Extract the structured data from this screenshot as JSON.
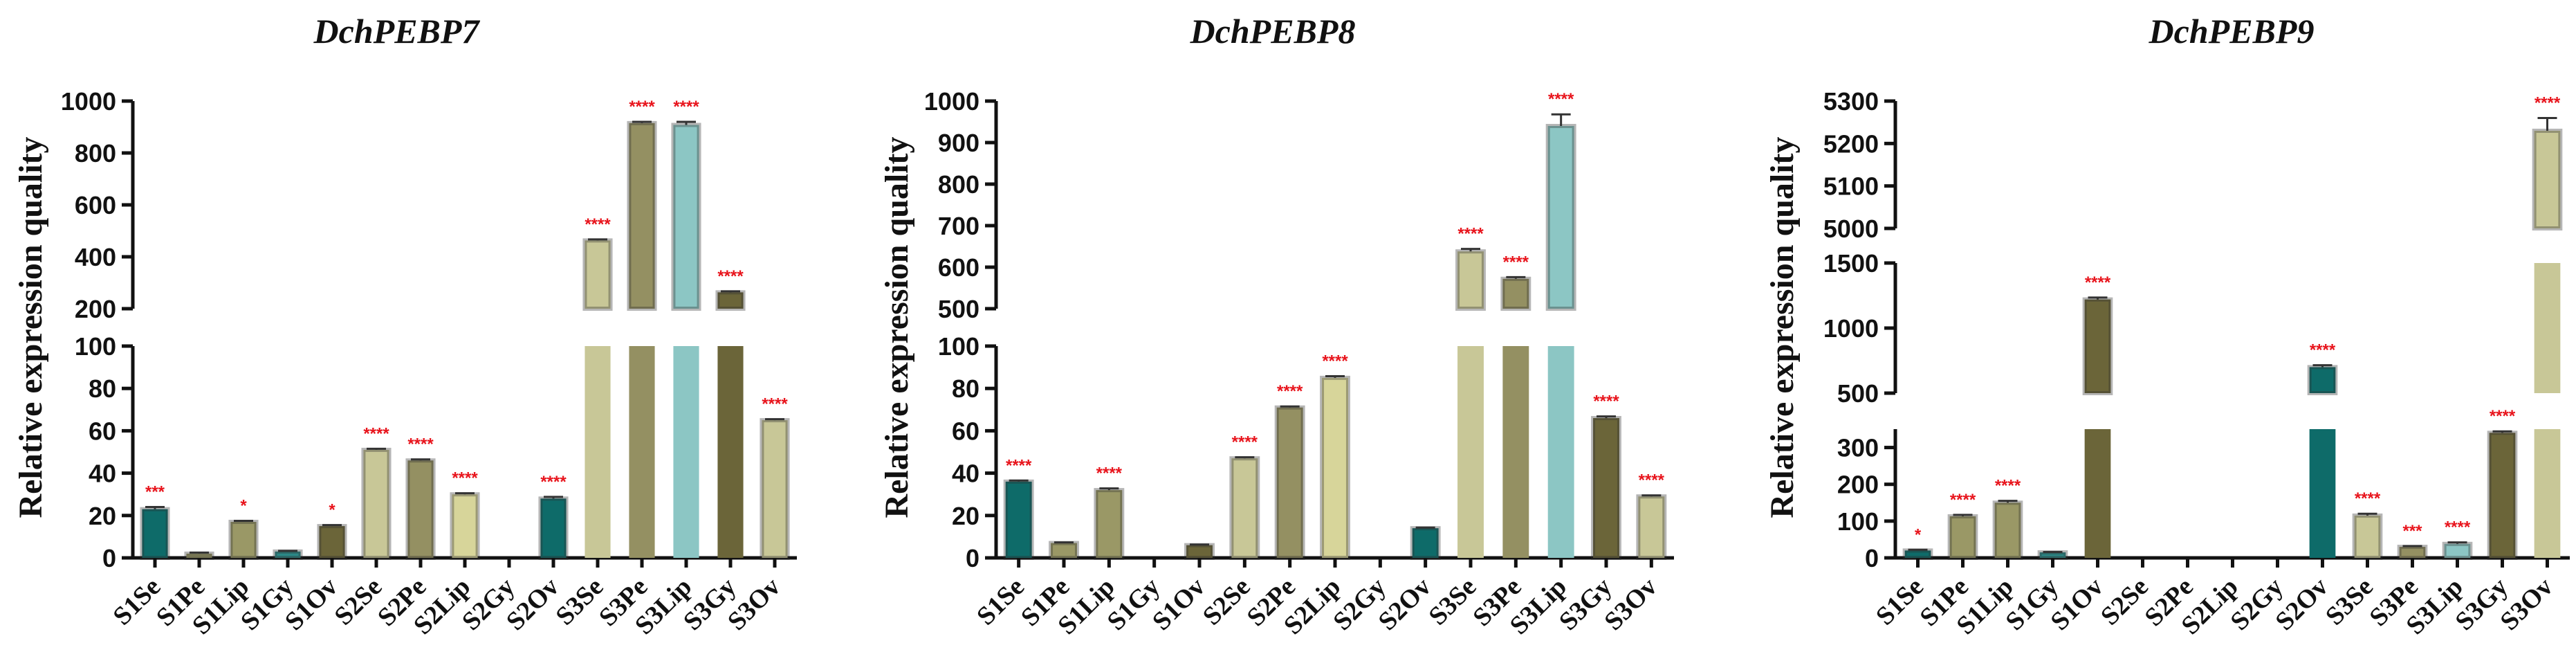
{
  "chart_data": [
    {
      "type": "bar",
      "title": "DchPEBP7",
      "ylabel": "Relative expression quality",
      "xlabel": "",
      "categories": [
        "S1Se",
        "S1Pe",
        "S1Lip",
        "S1Gy",
        "S1Ov",
        "S2Se",
        "S2Pe",
        "S2Lip",
        "S2Gy",
        "S2Ov",
        "S3Se",
        "S3Pe",
        "S3Lip",
        "S3Gy",
        "S3Ov"
      ],
      "values": [
        23,
        2,
        17,
        3,
        15,
        51,
        46,
        30,
        0,
        28,
        463,
        915,
        908,
        263,
        65
      ],
      "errors": [
        1,
        0.5,
        0.5,
        0.3,
        0.5,
        0.5,
        0.5,
        0.5,
        0,
        0.8,
        4,
        5,
        12,
        4,
        0.5
      ],
      "significance": [
        "***",
        "",
        "*",
        "",
        "*",
        "****",
        "****",
        "****",
        "",
        "****",
        "****",
        "****",
        "****",
        "****",
        "****"
      ],
      "colors": [
        "#0e6b69",
        "#9a9866",
        "#9a9866",
        "#2b8886",
        "#6b6539",
        "#c8c797",
        "#949062",
        "#d7d59a",
        "#555555",
        "#0e6b69",
        "#c8c797",
        "#949062",
        "#8cc6c4",
        "#6b6539",
        "#c8c797"
      ],
      "broken_axis": true,
      "segments": [
        {
          "range": [
            0,
            100
          ],
          "ticks": [
            "0",
            "20",
            "40",
            "60",
            "80",
            "100"
          ]
        },
        {
          "range": [
            200,
            1000
          ],
          "ticks": [
            "200",
            "400",
            "600",
            "800",
            "1000"
          ]
        }
      ]
    },
    {
      "type": "bar",
      "title": "DchPEBP8",
      "ylabel": "Relative expression quality",
      "xlabel": "",
      "categories": [
        "S1Se",
        "S1Pe",
        "S1Lip",
        "S1Gy",
        "S1Ov",
        "S2Se",
        "S2Pe",
        "S2Lip",
        "S2Gy",
        "S2Ov",
        "S3Se",
        "S3Pe",
        "S3Lip",
        "S3Gy",
        "S3Ov"
      ],
      "values": [
        36,
        7,
        32,
        0,
        6,
        47,
        71,
        85,
        0,
        14,
        638,
        572,
        940,
        66,
        29
      ],
      "errors": [
        0.5,
        0.3,
        0.8,
        0,
        0.3,
        0.5,
        0.5,
        0.8,
        0,
        0.3,
        6,
        4,
        28,
        0.8,
        0.5
      ],
      "significance": [
        "****",
        "",
        "****",
        "",
        "",
        "****",
        "****",
        "****",
        "",
        "",
        "****",
        "****",
        "****",
        "****",
        "****"
      ],
      "colors": [
        "#0e6b69",
        "#9a9866",
        "#9a9866",
        "#2b8886",
        "#6b6539",
        "#c8c797",
        "#949062",
        "#d7d59a",
        "#555555",
        "#0e6b69",
        "#c8c797",
        "#949062",
        "#8cc6c4",
        "#6b6539",
        "#c8c797"
      ],
      "broken_axis": true,
      "segments": [
        {
          "range": [
            0,
            100
          ],
          "ticks": [
            "0",
            "20",
            "40",
            "60",
            "80",
            "100"
          ]
        },
        {
          "range": [
            500,
            1000
          ],
          "ticks": [
            "500",
            "600",
            "700",
            "800",
            "900",
            "1000"
          ]
        }
      ]
    },
    {
      "type": "bar",
      "title": "DchPEBP9",
      "ylabel": "Relative expression quality",
      "xlabel": "",
      "categories": [
        "S1Se",
        "S1Pe",
        "S1Lip",
        "S1Gy",
        "S1Ov",
        "S2Se",
        "S2Pe",
        "S2Lip",
        "S2Gy",
        "S2Ov",
        "S3Se",
        "S3Pe",
        "S3Lip",
        "S3Gy",
        "S3Ov"
      ],
      "values": [
        20,
        113,
        150,
        15,
        1220,
        0,
        0,
        0,
        0,
        700,
        115,
        30,
        38,
        340,
        5230
      ],
      "errors": [
        2,
        4,
        5,
        1,
        15,
        0,
        0,
        0,
        0,
        15,
        5,
        2,
        4,
        4,
        30
      ],
      "significance": [
        "*",
        "****",
        "****",
        "",
        "****",
        "",
        "",
        "",
        "",
        "****",
        "****",
        "***",
        "****",
        "****",
        "****"
      ],
      "colors": [
        "#0e6b69",
        "#9a9866",
        "#9a9866",
        "#2b8886",
        "#6b6539",
        "#c8c797",
        "#949062",
        "#d7d59a",
        "#555555",
        "#0e6b69",
        "#c8c797",
        "#949062",
        "#8cc6c4",
        "#6b6539",
        "#c8c797"
      ],
      "broken_axis": true,
      "segments": [
        {
          "range": [
            0,
            350
          ],
          "ticks": [
            "0",
            "100",
            "200",
            "300"
          ]
        },
        {
          "range": [
            500,
            1500
          ],
          "ticks": [
            "500",
            "1000",
            "1500"
          ]
        },
        {
          "range": [
            5000,
            5300
          ],
          "ticks": [
            "5000",
            "5100",
            "5200",
            "5300"
          ]
        }
      ]
    }
  ]
}
